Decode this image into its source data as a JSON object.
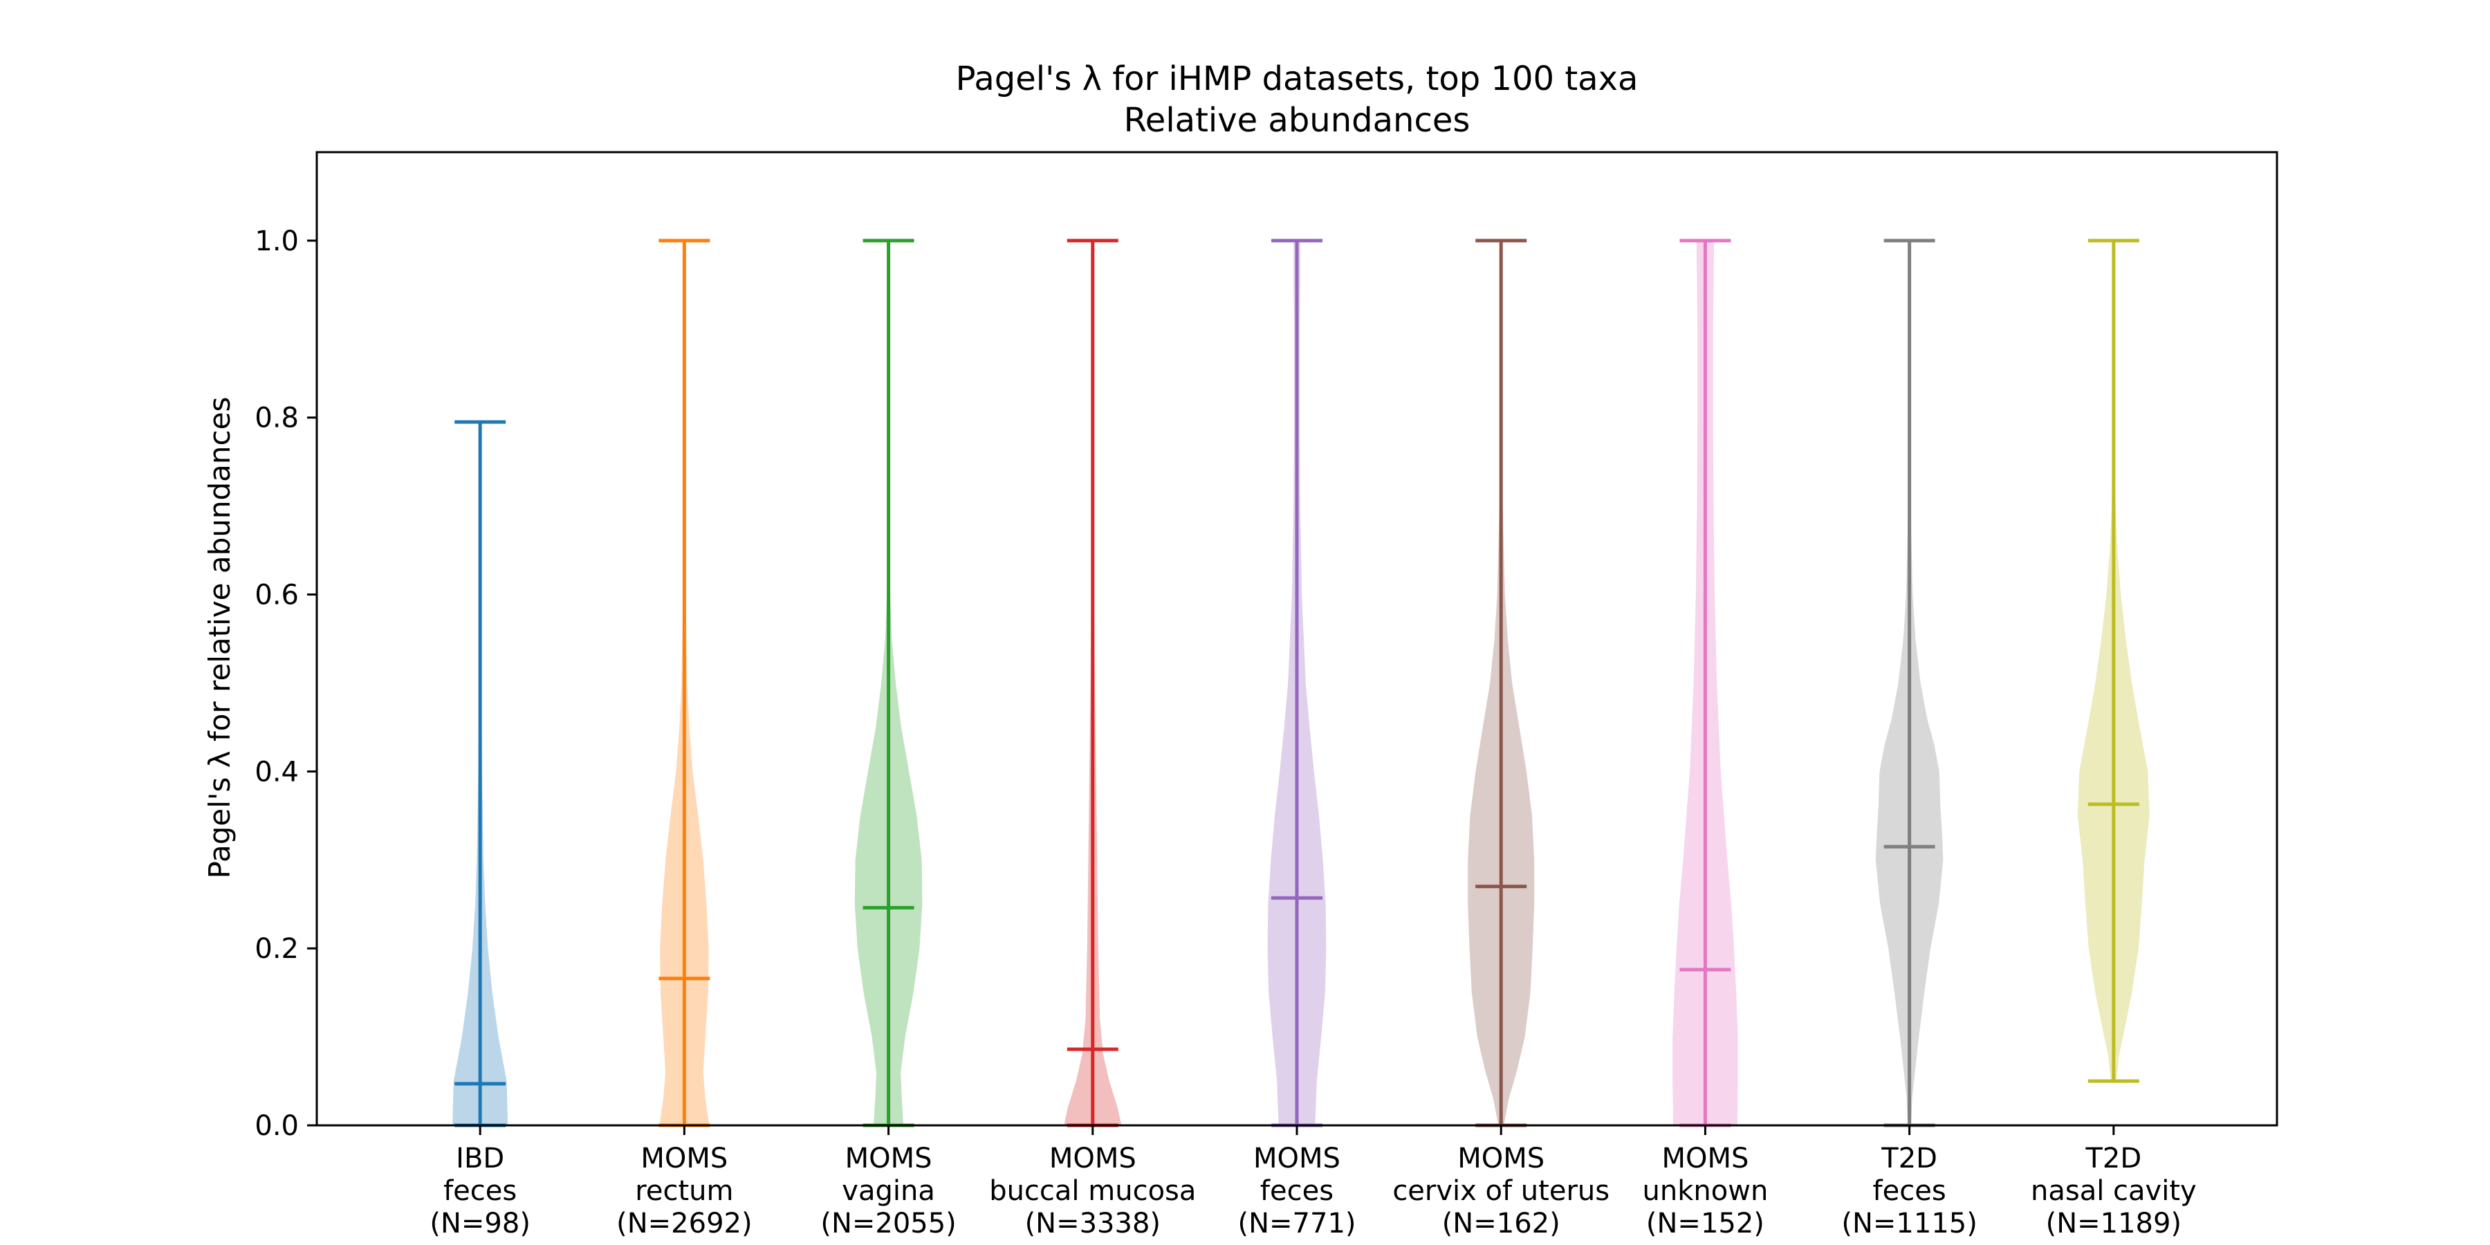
{
  "chart_data": {
    "type": "violin",
    "title": "Pagel's λ for iHMP datasets, top 100 taxa",
    "subtitle": "Relative abundances",
    "ylabel": "Pagel's λ for relative abundances",
    "xlabel": "",
    "ylim": [
      0,
      1.1
    ],
    "yticks": [
      "0.0",
      "0.2",
      "0.4",
      "0.6",
      "0.8",
      "1.0"
    ],
    "grid": false,
    "categories": [
      {
        "line1": "IBD",
        "line2": "feces",
        "line3": "(N=98)"
      },
      {
        "line1": "MOMS",
        "line2": "rectum",
        "line3": "(N=2692)"
      },
      {
        "line1": "MOMS",
        "line2": "vagina",
        "line3": "(N=2055)"
      },
      {
        "line1": "MOMS",
        "line2": "buccal mucosa",
        "line3": "(N=3338)"
      },
      {
        "line1": "MOMS",
        "line2": "feces",
        "line3": "(N=771)"
      },
      {
        "line1": "MOMS",
        "line2": "cervix of uterus",
        "line3": "(N=162)"
      },
      {
        "line1": "MOMS",
        "line2": "unknown",
        "line3": "(N=152)"
      },
      {
        "line1": "T2D",
        "line2": "feces",
        "line3": "(N=1115)"
      },
      {
        "line1": "T2D",
        "line2": "nasal cavity",
        "line3": "(N=1189)"
      }
    ],
    "series": [
      {
        "color": "#1f77b4",
        "min": 0.0,
        "max": 0.795,
        "median": 0.047,
        "density": [
          [
            0,
            0.5
          ],
          [
            0.05,
            0.48
          ],
          [
            0.1,
            0.33
          ],
          [
            0.15,
            0.22
          ],
          [
            0.2,
            0.14
          ],
          [
            0.25,
            0.09
          ],
          [
            0.3,
            0.06
          ],
          [
            0.4,
            0.035
          ],
          [
            0.5,
            0.02
          ],
          [
            0.6,
            0.012
          ],
          [
            0.7,
            0.006
          ],
          [
            0.795,
            0.002
          ]
        ]
      },
      {
        "color": "#ff7f0e",
        "min": 0.0,
        "max": 1.0,
        "median": 0.166,
        "density": [
          [
            0,
            0.45
          ],
          [
            0.03,
            0.38
          ],
          [
            0.06,
            0.34
          ],
          [
            0.1,
            0.38
          ],
          [
            0.15,
            0.43
          ],
          [
            0.2,
            0.44
          ],
          [
            0.25,
            0.4
          ],
          [
            0.3,
            0.34
          ],
          [
            0.35,
            0.25
          ],
          [
            0.4,
            0.15
          ],
          [
            0.45,
            0.09
          ],
          [
            0.5,
            0.05
          ],
          [
            0.6,
            0.025
          ],
          [
            0.7,
            0.015
          ],
          [
            0.8,
            0.01
          ],
          [
            0.9,
            0.006
          ],
          [
            1.0,
            0.003
          ]
        ]
      },
      {
        "color": "#2ca02c",
        "min": 0.0,
        "max": 1.0,
        "median": 0.246,
        "density": [
          [
            0,
            0.27
          ],
          [
            0.03,
            0.24
          ],
          [
            0.06,
            0.22
          ],
          [
            0.1,
            0.3
          ],
          [
            0.15,
            0.45
          ],
          [
            0.2,
            0.56
          ],
          [
            0.25,
            0.61
          ],
          [
            0.3,
            0.6
          ],
          [
            0.35,
            0.51
          ],
          [
            0.4,
            0.37
          ],
          [
            0.45,
            0.23
          ],
          [
            0.5,
            0.13
          ],
          [
            0.55,
            0.06
          ],
          [
            0.6,
            0.03
          ],
          [
            0.7,
            0.01
          ],
          [
            0.8,
            0.005
          ],
          [
            1.0,
            0.002
          ]
        ]
      },
      {
        "color": "#d62728",
        "min": 0.0,
        "max": 1.0,
        "median": 0.086,
        "density": [
          [
            0,
            0.52
          ],
          [
            0.02,
            0.45
          ],
          [
            0.05,
            0.3
          ],
          [
            0.08,
            0.19
          ],
          [
            0.12,
            0.13
          ],
          [
            0.2,
            0.1
          ],
          [
            0.3,
            0.08
          ],
          [
            0.4,
            0.06
          ],
          [
            0.5,
            0.04
          ],
          [
            0.6,
            0.025
          ],
          [
            0.7,
            0.015
          ],
          [
            0.8,
            0.01
          ],
          [
            0.9,
            0.006
          ],
          [
            1.0,
            0.003
          ]
        ]
      },
      {
        "color": "#9467bd",
        "min": 0.0,
        "max": 1.0,
        "median": 0.257,
        "density": [
          [
            0,
            0.33
          ],
          [
            0.05,
            0.36
          ],
          [
            0.1,
            0.44
          ],
          [
            0.15,
            0.51
          ],
          [
            0.2,
            0.53
          ],
          [
            0.25,
            0.52
          ],
          [
            0.3,
            0.47
          ],
          [
            0.35,
            0.4
          ],
          [
            0.4,
            0.31
          ],
          [
            0.45,
            0.23
          ],
          [
            0.5,
            0.16
          ],
          [
            0.6,
            0.09
          ],
          [
            0.7,
            0.06
          ],
          [
            0.8,
            0.05
          ],
          [
            0.9,
            0.05
          ],
          [
            0.95,
            0.06
          ],
          [
            1.0,
            0.06
          ]
        ]
      },
      {
        "color": "#8c564b",
        "min": 0.0,
        "max": 1.0,
        "median": 0.27,
        "density": [
          [
            0,
            0.05
          ],
          [
            0.03,
            0.14
          ],
          [
            0.06,
            0.28
          ],
          [
            0.1,
            0.43
          ],
          [
            0.15,
            0.53
          ],
          [
            0.2,
            0.57
          ],
          [
            0.25,
            0.6
          ],
          [
            0.3,
            0.6
          ],
          [
            0.35,
            0.56
          ],
          [
            0.4,
            0.46
          ],
          [
            0.45,
            0.33
          ],
          [
            0.5,
            0.2
          ],
          [
            0.55,
            0.12
          ],
          [
            0.6,
            0.07
          ],
          [
            0.7,
            0.03
          ],
          [
            0.8,
            0.015
          ],
          [
            1.0,
            0.005
          ]
        ]
      },
      {
        "color": "#e377c2",
        "min": 0.0,
        "max": 1.0,
        "median": 0.176,
        "density": [
          [
            0,
            0.58
          ],
          [
            0.05,
            0.59
          ],
          [
            0.1,
            0.59
          ],
          [
            0.15,
            0.56
          ],
          [
            0.2,
            0.52
          ],
          [
            0.25,
            0.47
          ],
          [
            0.3,
            0.4
          ],
          [
            0.35,
            0.34
          ],
          [
            0.4,
            0.28
          ],
          [
            0.5,
            0.21
          ],
          [
            0.6,
            0.17
          ],
          [
            0.7,
            0.15
          ],
          [
            0.8,
            0.14
          ],
          [
            0.9,
            0.14
          ],
          [
            1.0,
            0.16
          ]
        ]
      },
      {
        "color": "#7f7f7f",
        "min": 0.0,
        "max": 1.0,
        "median": 0.315,
        "density": [
          [
            0,
            0.03
          ],
          [
            0.03,
            0.05
          ],
          [
            0.06,
            0.1
          ],
          [
            0.1,
            0.17
          ],
          [
            0.15,
            0.27
          ],
          [
            0.2,
            0.38
          ],
          [
            0.25,
            0.53
          ],
          [
            0.3,
            0.61
          ],
          [
            0.33,
            0.59
          ],
          [
            0.36,
            0.56
          ],
          [
            0.4,
            0.54
          ],
          [
            0.43,
            0.45
          ],
          [
            0.46,
            0.32
          ],
          [
            0.5,
            0.2
          ],
          [
            0.55,
            0.11
          ],
          [
            0.6,
            0.06
          ],
          [
            0.7,
            0.02
          ],
          [
            0.8,
            0.008
          ],
          [
            1.0,
            0.003
          ]
        ]
      },
      {
        "color": "#bcbd22",
        "min": 0.05,
        "max": 1.0,
        "median": 0.363,
        "density": [
          [
            0.05,
            0.05
          ],
          [
            0.08,
            0.1
          ],
          [
            0.1,
            0.17
          ],
          [
            0.15,
            0.33
          ],
          [
            0.2,
            0.45
          ],
          [
            0.25,
            0.51
          ],
          [
            0.3,
            0.56
          ],
          [
            0.35,
            0.65
          ],
          [
            0.4,
            0.62
          ],
          [
            0.45,
            0.47
          ],
          [
            0.5,
            0.33
          ],
          [
            0.55,
            0.22
          ],
          [
            0.6,
            0.13
          ],
          [
            0.65,
            0.07
          ],
          [
            0.7,
            0.035
          ],
          [
            0.8,
            0.012
          ],
          [
            0.9,
            0.005
          ],
          [
            1.0,
            0.002
          ]
        ]
      }
    ]
  }
}
